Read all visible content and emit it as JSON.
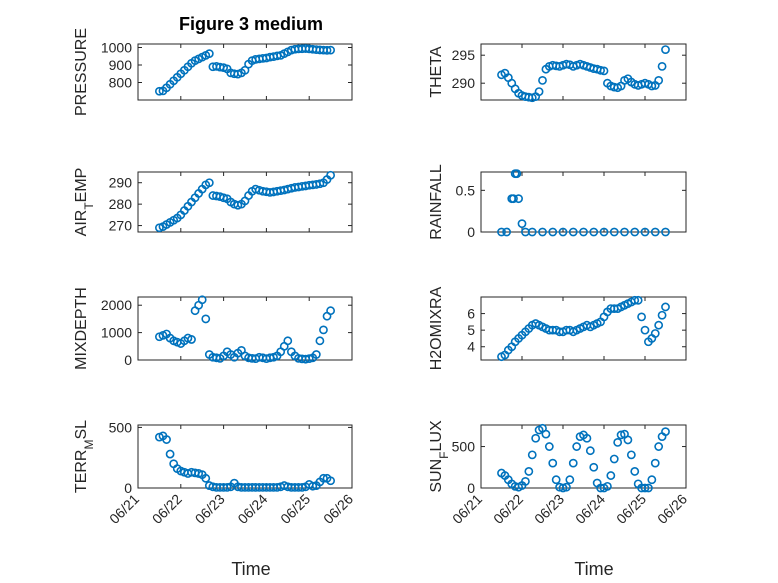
{
  "figure": {
    "title": "Figure 3 medium",
    "x_axis_label": "Time",
    "x_tick_labels": [
      "06/21",
      "06/22",
      "06/23",
      "06/24",
      "06/25",
      "06/26"
    ],
    "marker_color": "#0072bd",
    "marker_style": "open-circle",
    "grid": "major+minor"
  },
  "chart_data": [
    {
      "type": "scatter",
      "ylabel": "PRESSURE",
      "ylim": [
        700,
        1020
      ],
      "yticks": [
        800,
        900,
        1000
      ],
      "x": [
        "06/21 12:00",
        "06/21 14:00",
        "06/21 16:00",
        "06/21 18:00",
        "06/21 20:00",
        "06/21 22:00",
        "06/22 00:00",
        "06/22 02:00",
        "06/22 04:00",
        "06/22 06:00",
        "06/22 08:00",
        "06/22 10:00",
        "06/22 12:00",
        "06/22 14:00",
        "06/22 16:00",
        "06/22 18:00",
        "06/22 20:00",
        "06/22 22:00",
        "06/23 00:00",
        "06/23 02:00",
        "06/23 04:00",
        "06/23 06:00",
        "06/23 08:00",
        "06/23 10:00",
        "06/23 12:00",
        "06/23 14:00",
        "06/23 16:00",
        "06/23 18:00",
        "06/23 20:00",
        "06/23 22:00",
        "06/24 00:00",
        "06/24 02:00",
        "06/24 04:00",
        "06/24 06:00",
        "06/24 08:00",
        "06/24 10:00",
        "06/24 12:00",
        "06/24 14:00",
        "06/24 16:00",
        "06/24 18:00",
        "06/24 20:00",
        "06/24 22:00",
        "06/25 00:00",
        "06/25 02:00",
        "06/25 04:00",
        "06/25 06:00",
        "06/25 08:00",
        "06/25 10:00",
        "06/25 12:00"
      ],
      "values": [
        750,
        752,
        770,
        790,
        810,
        830,
        850,
        870,
        890,
        910,
        925,
        935,
        945,
        955,
        965,
        890,
        892,
        888,
        885,
        878,
        855,
        850,
        848,
        855,
        870,
        905,
        925,
        932,
        935,
        938,
        940,
        945,
        948,
        952,
        955,
        965,
        975,
        985,
        990,
        992,
        993,
        994,
        992,
        990,
        988,
        986,
        985,
        984,
        985
      ]
    },
    {
      "type": "scatter",
      "ylabel": "THETA",
      "ylim": [
        287,
        297
      ],
      "yticks": [
        290,
        295
      ],
      "x": [
        "06/21 12:00",
        "06/21 14:00",
        "06/21 16:00",
        "06/21 18:00",
        "06/21 20:00",
        "06/21 22:00",
        "06/22 00:00",
        "06/22 02:00",
        "06/22 04:00",
        "06/22 06:00",
        "06/22 08:00",
        "06/22 10:00",
        "06/22 12:00",
        "06/22 14:00",
        "06/22 16:00",
        "06/22 18:00",
        "06/22 20:00",
        "06/22 22:00",
        "06/23 00:00",
        "06/23 02:00",
        "06/23 04:00",
        "06/23 06:00",
        "06/23 08:00",
        "06/23 10:00",
        "06/23 12:00",
        "06/23 14:00",
        "06/23 16:00",
        "06/23 18:00",
        "06/23 20:00",
        "06/23 22:00",
        "06/24 00:00",
        "06/24 02:00",
        "06/24 04:00",
        "06/24 06:00",
        "06/24 08:00",
        "06/24 10:00",
        "06/24 12:00",
        "06/24 14:00",
        "06/24 16:00",
        "06/24 18:00",
        "06/24 20:00",
        "06/24 22:00",
        "06/25 00:00",
        "06/25 02:00",
        "06/25 04:00",
        "06/25 06:00",
        "06/25 08:00",
        "06/25 10:00",
        "06/25 12:00"
      ],
      "values": [
        291.5,
        291.8,
        291.0,
        290.0,
        289.0,
        288.2,
        287.8,
        287.6,
        287.5,
        287.4,
        287.6,
        288.5,
        290.5,
        292.5,
        293.0,
        293.2,
        293.1,
        293.0,
        293.2,
        293.4,
        293.3,
        293.0,
        293.2,
        293.4,
        293.2,
        293.0,
        292.8,
        292.6,
        292.5,
        292.3,
        292.2,
        290.0,
        289.5,
        289.3,
        289.2,
        289.5,
        290.5,
        290.8,
        290.2,
        289.8,
        289.6,
        289.8,
        290.0,
        289.8,
        289.5,
        289.6,
        290.5,
        293.0,
        296.0
      ]
    },
    {
      "type": "scatter",
      "ylabel": "AIR_TEMP",
      "ylim": [
        267,
        295
      ],
      "yticks": [
        270,
        280,
        290
      ],
      "x": [
        "06/21 12:00",
        "06/21 14:00",
        "06/21 16:00",
        "06/21 18:00",
        "06/21 20:00",
        "06/21 22:00",
        "06/22 00:00",
        "06/22 02:00",
        "06/22 04:00",
        "06/22 06:00",
        "06/22 08:00",
        "06/22 10:00",
        "06/22 12:00",
        "06/22 14:00",
        "06/22 16:00",
        "06/22 18:00",
        "06/22 20:00",
        "06/22 22:00",
        "06/23 00:00",
        "06/23 02:00",
        "06/23 04:00",
        "06/23 06:00",
        "06/23 08:00",
        "06/23 10:00",
        "06/23 12:00",
        "06/23 14:00",
        "06/23 16:00",
        "06/23 18:00",
        "06/23 20:00",
        "06/23 22:00",
        "06/24 00:00",
        "06/24 02:00",
        "06/24 04:00",
        "06/24 06:00",
        "06/24 08:00",
        "06/24 10:00",
        "06/24 12:00",
        "06/24 14:00",
        "06/24 16:00",
        "06/24 18:00",
        "06/24 20:00",
        "06/24 22:00",
        "06/25 00:00",
        "06/25 02:00",
        "06/25 04:00",
        "06/25 06:00",
        "06/25 08:00",
        "06/25 10:00",
        "06/25 12:00"
      ],
      "values": [
        269,
        269.5,
        270.5,
        271.5,
        272.5,
        273.5,
        275,
        277,
        279,
        281,
        283,
        285,
        287,
        289,
        290,
        284,
        283.8,
        283.5,
        283,
        282.5,
        281,
        280,
        279.5,
        280,
        281.5,
        284,
        286,
        287,
        286.5,
        286,
        285.8,
        285.5,
        285.7,
        286,
        286.3,
        286.6,
        287,
        287.4,
        287.8,
        288,
        288.3,
        288.5,
        288.8,
        289,
        289.2,
        289.5,
        290,
        291.5,
        293.5
      ]
    },
    {
      "type": "scatter",
      "ylabel": "RAINFALL",
      "ylim": [
        0,
        0.72
      ],
      "yticks": [
        0,
        0.5
      ],
      "x": [
        "06/21 12:00",
        "06/21 15:00",
        "06/21 18:00",
        "06/21 19:00",
        "06/21 20:00",
        "06/21 21:00",
        "06/21 22:00",
        "06/22 00:00",
        "06/22 02:00",
        "06/22 06:00",
        "06/22 12:00",
        "06/22 18:00",
        "06/23 00:00",
        "06/23 06:00",
        "06/23 12:00",
        "06/23 18:00",
        "06/24 00:00",
        "06/24 06:00",
        "06/24 12:00",
        "06/24 18:00",
        "06/25 00:00",
        "06/25 06:00",
        "06/25 12:00"
      ],
      "values": [
        0,
        0,
        0.4,
        0.4,
        0.7,
        0.7,
        0.4,
        0.1,
        0,
        0,
        0,
        0,
        0,
        0,
        0,
        0,
        0,
        0,
        0,
        0,
        0,
        0,
        0
      ]
    },
    {
      "type": "scatter",
      "ylabel": "MIXDEPTH",
      "ylim": [
        0,
        2300
      ],
      "yticks": [
        0,
        1000,
        2000
      ],
      "x": [
        "06/21 12:00",
        "06/21 14:00",
        "06/21 16:00",
        "06/21 18:00",
        "06/21 20:00",
        "06/21 22:00",
        "06/22 00:00",
        "06/22 02:00",
        "06/22 04:00",
        "06/22 06:00",
        "06/22 08:00",
        "06/22 10:00",
        "06/22 12:00",
        "06/22 14:00",
        "06/22 16:00",
        "06/22 18:00",
        "06/22 20:00",
        "06/22 22:00",
        "06/23 00:00",
        "06/23 02:00",
        "06/23 04:00",
        "06/23 06:00",
        "06/23 08:00",
        "06/23 10:00",
        "06/23 12:00",
        "06/23 14:00",
        "06/23 16:00",
        "06/23 18:00",
        "06/23 20:00",
        "06/23 22:00",
        "06/24 00:00",
        "06/24 02:00",
        "06/24 04:00",
        "06/24 06:00",
        "06/24 08:00",
        "06/24 10:00",
        "06/24 12:00",
        "06/24 14:00",
        "06/24 16:00",
        "06/24 18:00",
        "06/24 20:00",
        "06/24 22:00",
        "06/25 00:00",
        "06/25 02:00",
        "06/25 04:00",
        "06/25 06:00",
        "06/25 08:00",
        "06/25 10:00",
        "06/25 12:00"
      ],
      "values": [
        850,
        900,
        950,
        800,
        700,
        650,
        600,
        700,
        800,
        750,
        1800,
        2000,
        2200,
        1500,
        200,
        100,
        80,
        60,
        150,
        300,
        200,
        100,
        250,
        350,
        150,
        80,
        60,
        50,
        100,
        80,
        50,
        80,
        100,
        150,
        300,
        500,
        700,
        300,
        150,
        60,
        40,
        30,
        50,
        80,
        200,
        700,
        1100,
        1600,
        1800
      ]
    },
    {
      "type": "scatter",
      "ylabel": "H2OMIXRA",
      "ylim": [
        3.2,
        7.0
      ],
      "yticks": [
        4,
        5,
        6
      ],
      "x": [
        "06/21 12:00",
        "06/21 14:00",
        "06/21 16:00",
        "06/21 18:00",
        "06/21 20:00",
        "06/21 22:00",
        "06/22 00:00",
        "06/22 02:00",
        "06/22 04:00",
        "06/22 06:00",
        "06/22 08:00",
        "06/22 10:00",
        "06/22 12:00",
        "06/22 14:00",
        "06/22 16:00",
        "06/22 18:00",
        "06/22 20:00",
        "06/22 22:00",
        "06/23 00:00",
        "06/23 02:00",
        "06/23 04:00",
        "06/23 06:00",
        "06/23 08:00",
        "06/23 10:00",
        "06/23 12:00",
        "06/23 14:00",
        "06/23 16:00",
        "06/23 18:00",
        "06/23 20:00",
        "06/23 22:00",
        "06/24 00:00",
        "06/24 02:00",
        "06/24 04:00",
        "06/24 06:00",
        "06/24 08:00",
        "06/24 10:00",
        "06/24 12:00",
        "06/24 14:00",
        "06/24 16:00",
        "06/24 18:00",
        "06/24 20:00",
        "06/24 22:00",
        "06/25 00:00",
        "06/25 02:00",
        "06/25 04:00",
        "06/25 06:00",
        "06/25 08:00",
        "06/25 10:00",
        "06/25 12:00"
      ],
      "values": [
        3.4,
        3.5,
        3.8,
        4.0,
        4.3,
        4.5,
        4.7,
        4.9,
        5.1,
        5.3,
        5.4,
        5.3,
        5.2,
        5.1,
        5.0,
        5.0,
        5.0,
        4.9,
        4.9,
        5.0,
        5.0,
        4.9,
        5.0,
        5.1,
        5.2,
        5.3,
        5.2,
        5.3,
        5.4,
        5.5,
        5.8,
        6.1,
        6.3,
        6.3,
        6.3,
        6.4,
        6.5,
        6.6,
        6.7,
        6.8,
        6.8,
        5.8,
        5.0,
        4.3,
        4.5,
        4.8,
        5.3,
        5.9,
        6.4
      ]
    },
    {
      "type": "scatter",
      "ylabel": "TERR_MSL",
      "ylim": [
        0,
        520
      ],
      "yticks": [
        0,
        500
      ],
      "x": [
        "06/21 12:00",
        "06/21 14:00",
        "06/21 16:00",
        "06/21 18:00",
        "06/21 20:00",
        "06/21 22:00",
        "06/22 00:00",
        "06/22 02:00",
        "06/22 04:00",
        "06/22 06:00",
        "06/22 08:00",
        "06/22 10:00",
        "06/22 12:00",
        "06/22 14:00",
        "06/22 16:00",
        "06/22 18:00",
        "06/22 20:00",
        "06/22 22:00",
        "06/23 00:00",
        "06/23 02:00",
        "06/23 04:00",
        "06/23 06:00",
        "06/23 08:00",
        "06/23 10:00",
        "06/23 12:00",
        "06/23 14:00",
        "06/23 16:00",
        "06/23 18:00",
        "06/23 20:00",
        "06/23 22:00",
        "06/24 00:00",
        "06/24 02:00",
        "06/24 04:00",
        "06/24 06:00",
        "06/24 08:00",
        "06/24 10:00",
        "06/24 12:00",
        "06/24 14:00",
        "06/24 16:00",
        "06/24 18:00",
        "06/24 20:00",
        "06/24 22:00",
        "06/25 00:00",
        "06/25 02:00",
        "06/25 04:00",
        "06/25 06:00",
        "06/25 08:00",
        "06/25 10:00",
        "06/25 12:00"
      ],
      "values": [
        420,
        430,
        400,
        280,
        200,
        160,
        140,
        130,
        120,
        130,
        125,
        120,
        110,
        80,
        20,
        10,
        5,
        5,
        5,
        5,
        10,
        40,
        10,
        5,
        5,
        5,
        5,
        5,
        5,
        5,
        5,
        5,
        5,
        5,
        10,
        20,
        10,
        5,
        5,
        5,
        5,
        10,
        30,
        15,
        20,
        50,
        80,
        80,
        60
      ]
    },
    {
      "type": "scatter",
      "ylabel": "SUN_FLUX",
      "ylim": [
        0,
        760
      ],
      "yticks": [
        0,
        500
      ],
      "x": [
        "06/21 12:00",
        "06/21 14:00",
        "06/21 16:00",
        "06/21 18:00",
        "06/21 20:00",
        "06/21 22:00",
        "06/22 00:00",
        "06/22 02:00",
        "06/22 04:00",
        "06/22 06:00",
        "06/22 08:00",
        "06/22 10:00",
        "06/22 12:00",
        "06/22 14:00",
        "06/22 16:00",
        "06/22 18:00",
        "06/22 20:00",
        "06/22 22:00",
        "06/23 00:00",
        "06/23 02:00",
        "06/23 04:00",
        "06/23 06:00",
        "06/23 08:00",
        "06/23 10:00",
        "06/23 12:00",
        "06/23 14:00",
        "06/23 16:00",
        "06/23 18:00",
        "06/23 20:00",
        "06/23 22:00",
        "06/24 00:00",
        "06/24 02:00",
        "06/24 04:00",
        "06/24 06:00",
        "06/24 08:00",
        "06/24 10:00",
        "06/24 12:00",
        "06/24 14:00",
        "06/24 16:00",
        "06/24 18:00",
        "06/24 20:00",
        "06/24 22:00",
        "06/25 00:00",
        "06/25 02:00",
        "06/25 04:00",
        "06/25 06:00",
        "06/25 08:00",
        "06/25 10:00",
        "06/25 12:00"
      ],
      "values": [
        180,
        150,
        100,
        50,
        20,
        10,
        30,
        80,
        200,
        400,
        600,
        700,
        720,
        650,
        500,
        300,
        100,
        10,
        0,
        10,
        100,
        300,
        500,
        620,
        640,
        600,
        450,
        250,
        60,
        0,
        0,
        20,
        150,
        350,
        550,
        640,
        650,
        580,
        400,
        200,
        50,
        0,
        0,
        0,
        100,
        300,
        500,
        620,
        680
      ]
    }
  ]
}
